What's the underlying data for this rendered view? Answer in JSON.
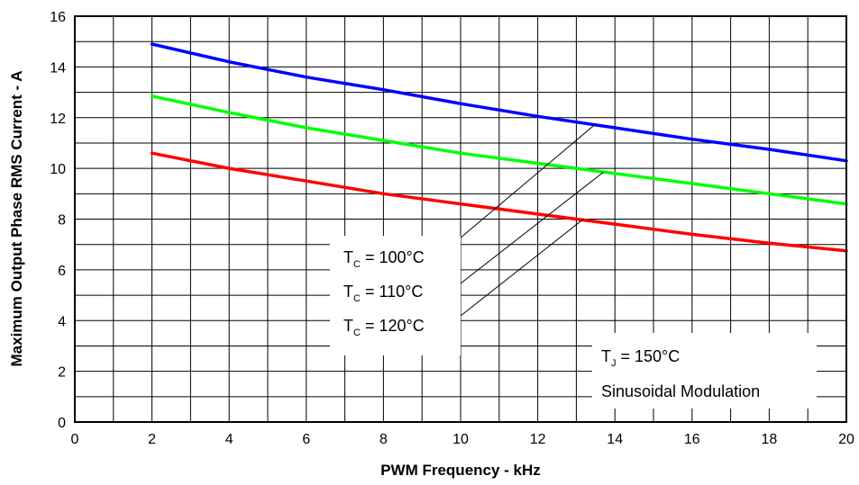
{
  "chart_data": {
    "type": "line",
    "title": "",
    "xlabel": "PWM Frequency - kHz",
    "ylabel": "Maximum Output Phase RMS Current - A",
    "xlim": [
      0,
      20
    ],
    "ylim": [
      0,
      16
    ],
    "x_ticks": [
      0,
      2,
      4,
      6,
      8,
      10,
      12,
      14,
      16,
      18,
      20
    ],
    "y_ticks": [
      0,
      2,
      4,
      6,
      8,
      10,
      12,
      14,
      16
    ],
    "grid": true,
    "series": [
      {
        "name": "T_C = 100°C",
        "color": "#0000ff",
        "x": [
          2,
          4,
          6,
          8,
          10,
          12,
          14,
          16,
          18,
          20
        ],
        "values": [
          14.9,
          14.2,
          13.6,
          13.1,
          12.55,
          12.05,
          11.6,
          11.15,
          10.75,
          10.3
        ]
      },
      {
        "name": "T_C = 110°C",
        "color": "#00ff00",
        "x": [
          2,
          4,
          6,
          8,
          10,
          12,
          14,
          16,
          18,
          20
        ],
        "values": [
          12.85,
          12.2,
          11.6,
          11.1,
          10.6,
          10.2,
          9.8,
          9.4,
          9.0,
          8.6
        ]
      },
      {
        "name": "T_C = 120°C",
        "color": "#ff0000",
        "x": [
          2,
          4,
          6,
          8,
          10,
          12,
          14,
          16,
          18,
          20
        ],
        "values": [
          10.6,
          10.0,
          9.5,
          9.0,
          8.6,
          8.2,
          7.8,
          7.4,
          7.05,
          6.75
        ]
      }
    ],
    "annotations": {
      "legend": [
        {
          "main": "T",
          "sub": "C",
          "rest": " = 100°C"
        },
        {
          "main": "T",
          "sub": "C",
          "rest": " = 110°C"
        },
        {
          "main": "T",
          "sub": "C",
          "rest": " = 120°C"
        }
      ],
      "conditions": [
        {
          "main": "T",
          "sub": "J",
          "rest": " = 150°C"
        },
        {
          "text": "Sinusoidal Modulation"
        }
      ]
    }
  }
}
